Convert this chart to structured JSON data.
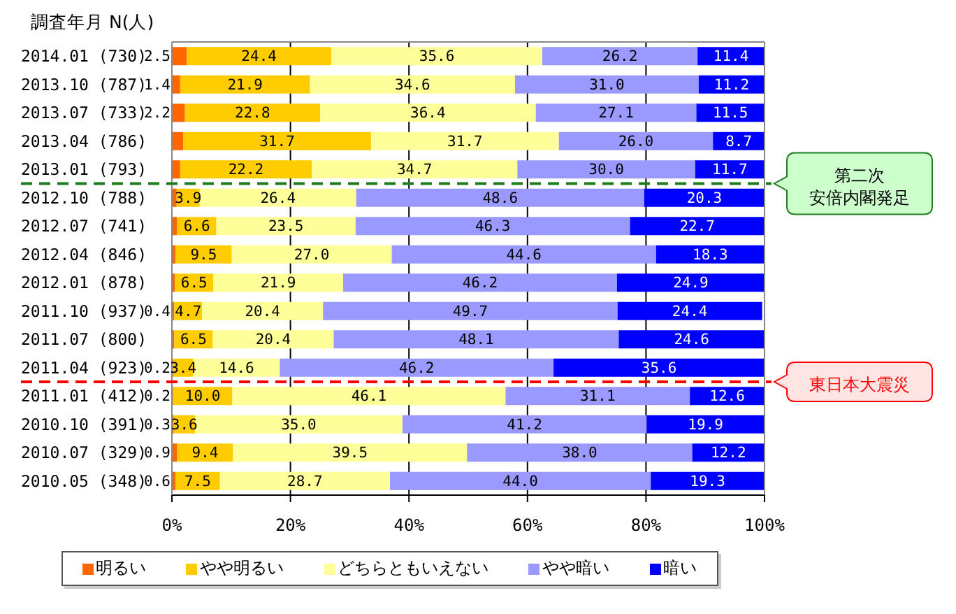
{
  "chart_data": {
    "type": "bar",
    "orientation": "horizontal",
    "stacked": true,
    "ylabel": "調査年月 N(人)",
    "categories": [
      "2014.01 (730)",
      "2013.10 (787)",
      "2013.07 (733)",
      "2013.04 (786)",
      "2013.01 (793)",
      "2012.10 (788)",
      "2012.07 (741)",
      "2012.04 (846)",
      "2012.01 (878)",
      "2011.10 (937)",
      "2011.07 (800)",
      "2011.04 (923)",
      "2011.01 (412)",
      "2010.10 (391)",
      "2010.07 (329)",
      "2010.05 (348)"
    ],
    "series": [
      {
        "name": "明るい",
        "color": "#ff6600",
        "values": [
          2.5,
          1.4,
          2.2,
          1.9,
          1.4,
          0.8,
          0.9,
          0.6,
          0.5,
          0.4,
          0.4,
          0.2,
          0.2,
          0.3,
          0.9,
          0.6
        ],
        "value_labels": [
          "2.5",
          "1.4",
          "2.2",
          null,
          null,
          null,
          null,
          null,
          null,
          "0.4",
          null,
          "0.2",
          "0.2",
          "0.3",
          "0.9",
          "0.6"
        ]
      },
      {
        "name": "やや明るい",
        "color": "#ffcc00",
        "values": [
          24.4,
          21.9,
          22.8,
          31.7,
          22.2,
          3.9,
          6.6,
          9.5,
          6.5,
          4.7,
          6.5,
          3.4,
          10.0,
          3.6,
          9.4,
          7.5
        ],
        "value_labels": [
          "24.4",
          "21.9",
          "22.8",
          "31.7",
          "22.2",
          "3.9",
          "6.6",
          "9.5",
          "6.5",
          "4.7",
          "6.5",
          "3.4",
          "10.0",
          "3.6",
          "9.4",
          "7.5"
        ]
      },
      {
        "name": "どちらともいえない",
        "color": "#ffff99",
        "values": [
          35.6,
          34.6,
          36.4,
          31.7,
          34.7,
          26.4,
          23.5,
          27.0,
          21.9,
          20.4,
          20.4,
          14.6,
          46.1,
          35.0,
          39.5,
          28.7
        ],
        "value_labels": [
          "35.6",
          "34.6",
          "36.4",
          "31.7",
          "34.7",
          "26.4",
          "23.5",
          "27.0",
          "21.9",
          "20.4",
          "20.4",
          "14.6",
          "46.1",
          "35.0",
          "39.5",
          "28.7"
        ]
      },
      {
        "name": "やや暗い",
        "color": "#9999ff",
        "values": [
          26.2,
          31.0,
          27.1,
          26.0,
          30.0,
          48.6,
          46.3,
          44.6,
          46.2,
          49.7,
          48.1,
          46.2,
          31.1,
          41.2,
          38.0,
          44.0
        ],
        "value_labels": [
          "26.2",
          "31.0",
          "27.1",
          "26.0",
          "30.0",
          "48.6",
          "46.3",
          "44.6",
          "46.2",
          "49.7",
          "48.1",
          "46.2",
          "31.1",
          "41.2",
          "38.0",
          "44.0"
        ]
      },
      {
        "name": "暗い",
        "color": "#0000ff",
        "values": [
          11.4,
          11.2,
          11.5,
          8.7,
          11.7,
          20.3,
          22.7,
          18.3,
          24.9,
          24.4,
          24.6,
          35.6,
          12.6,
          19.9,
          12.2,
          19.3
        ],
        "value_labels": [
          "11.4",
          "11.2",
          "11.5",
          "8.7",
          "11.7",
          "20.3",
          "22.7",
          "18.3",
          "24.9",
          "24.4",
          "24.6",
          "35.6",
          "12.6",
          "19.9",
          "12.2",
          "19.3"
        ]
      }
    ],
    "xlim": [
      0,
      100
    ],
    "xticks": [
      {
        "value": 0,
        "label": "0%"
      },
      {
        "value": 20,
        "label": "20%"
      },
      {
        "value": 40,
        "label": "40%"
      },
      {
        "value": 60,
        "label": "60%"
      },
      {
        "value": 80,
        "label": "80%"
      },
      {
        "value": 100,
        "label": "100%"
      }
    ],
    "grid": "x",
    "legend": "bottom",
    "ref_lines": [
      {
        "axis": "y",
        "value": "2012.10 (788)",
        "label": "第二次安倍内閣発足",
        "color": "#1e7b1e",
        "line_style": "dashed"
      },
      {
        "axis": "y",
        "value": "2011.01 (412)",
        "label": "東日本大震災",
        "color": "#ff0000",
        "line_style": "dashed"
      }
    ]
  }
}
